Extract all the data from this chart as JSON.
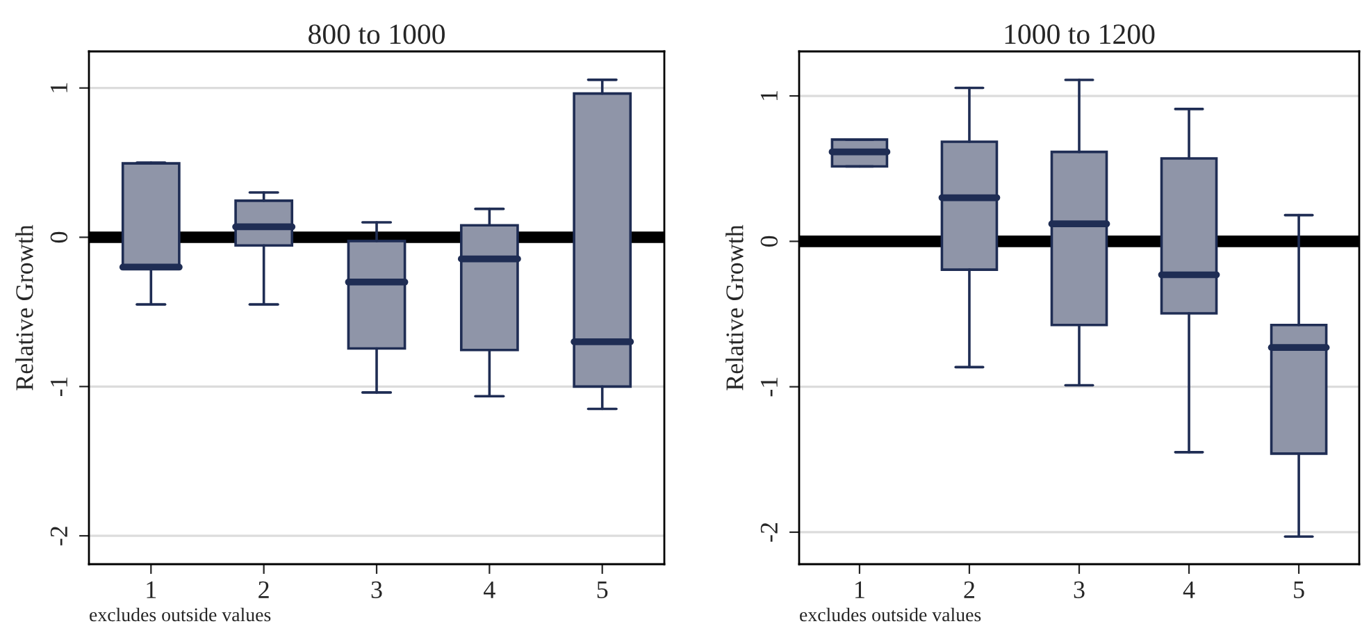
{
  "chart_data": [
    {
      "type": "box",
      "title": "800 to 1000",
      "ylabel": "Relative Growth",
      "categories": [
        "1",
        "2",
        "3",
        "4",
        "5"
      ],
      "ylim": [
        -2.19,
        1.245
      ],
      "yticks": [
        -2,
        -1,
        0,
        1
      ],
      "grid": "y",
      "color": "#8f95a8",
      "annotations": [
        "excludes outside values"
      ],
      "ref_lines": [
        {
          "axis": "y",
          "value": 0,
          "color": "#000000"
        }
      ],
      "boxes": [
        {
          "low": -0.45,
          "q1": -0.2,
          "median": -0.2,
          "q3": 0.495,
          "high": 0.5
        },
        {
          "low": -0.45,
          "q1": -0.055,
          "median": 0.07,
          "q3": 0.245,
          "high": 0.3
        },
        {
          "low": -1.04,
          "q1": -0.745,
          "median": -0.3,
          "q3": -0.025,
          "high": 0.1
        },
        {
          "low": -1.065,
          "q1": -0.755,
          "median": -0.145,
          "q3": 0.08,
          "high": 0.19
        },
        {
          "low": -1.15,
          "q1": -1.0,
          "median": -0.7,
          "q3": 0.963,
          "high": 1.055
        }
      ]
    },
    {
      "type": "box",
      "title": "1000 to 1200",
      "ylabel": "Relative Growth",
      "categories": [
        "1",
        "2",
        "3",
        "4",
        "5"
      ],
      "ylim": [
        -2.22,
        1.306
      ],
      "yticks": [
        -2,
        -1,
        0,
        1
      ],
      "grid": "y",
      "color": "#8f95a8",
      "annotations": [
        "excludes outside values"
      ],
      "ref_lines": [
        {
          "axis": "y",
          "value": 0,
          "color": "#000000"
        }
      ],
      "boxes": [
        {
          "low": 0.515,
          "q1": 0.515,
          "median": 0.615,
          "q3": 0.7,
          "high": 0.7
        },
        {
          "low": -0.865,
          "q1": -0.195,
          "median": 0.3,
          "q3": 0.685,
          "high": 1.055
        },
        {
          "low": -0.99,
          "q1": -0.575,
          "median": 0.12,
          "q3": 0.615,
          "high": 1.11
        },
        {
          "low": -1.45,
          "q1": -0.495,
          "median": -0.23,
          "q3": 0.57,
          "high": 0.91
        },
        {
          "low": -2.03,
          "q1": -1.46,
          "median": -0.73,
          "q3": -0.575,
          "high": 0.18
        }
      ]
    }
  ]
}
